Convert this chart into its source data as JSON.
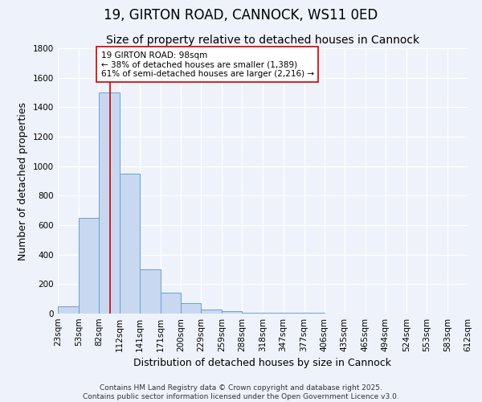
{
  "title": "19, GIRTON ROAD, CANNOCK, WS11 0ED",
  "subtitle": "Size of property relative to detached houses in Cannock",
  "xlabel": "Distribution of detached houses by size in Cannock",
  "ylabel": "Number of detached properties",
  "bin_labels": [
    "23sqm",
    "53sqm",
    "82sqm",
    "112sqm",
    "141sqm",
    "171sqm",
    "200sqm",
    "229sqm",
    "259sqm",
    "288sqm",
    "318sqm",
    "347sqm",
    "377sqm",
    "406sqm",
    "435sqm",
    "465sqm",
    "494sqm",
    "524sqm",
    "553sqm",
    "583sqm",
    "612sqm"
  ],
  "bin_edges": [
    23,
    53,
    82,
    112,
    141,
    171,
    200,
    229,
    259,
    288,
    318,
    347,
    377,
    406,
    435,
    465,
    494,
    524,
    553,
    583,
    612
  ],
  "bar_heights": [
    50,
    650,
    1500,
    950,
    300,
    140,
    70,
    25,
    15,
    5,
    5,
    5,
    5,
    0,
    0,
    0,
    0,
    0,
    0,
    0
  ],
  "bar_color": "#c8d8f0",
  "bar_edge_color": "#6aa0d0",
  "background_color": "#eef2fb",
  "grid_color": "#ffffff",
  "property_size": 98,
  "red_line_color": "#cc0000",
  "annotation_line1": "19 GIRTON ROAD: 98sqm",
  "annotation_line2": "← 38% of detached houses are smaller (1,389)",
  "annotation_line3": "61% of semi-detached houses are larger (2,216) →",
  "annotation_box_color": "#ffffff",
  "annotation_box_edge": "#cc0000",
  "ylim": [
    0,
    1800
  ],
  "yticks": [
    0,
    200,
    400,
    600,
    800,
    1000,
    1200,
    1400,
    1600,
    1800
  ],
  "footer_line1": "Contains HM Land Registry data © Crown copyright and database right 2025.",
  "footer_line2": "Contains public sector information licensed under the Open Government Licence v3.0.",
  "title_fontsize": 12,
  "subtitle_fontsize": 10,
  "label_fontsize": 9,
  "tick_fontsize": 7.5,
  "annotation_fontsize": 7.5,
  "footer_fontsize": 6.5
}
